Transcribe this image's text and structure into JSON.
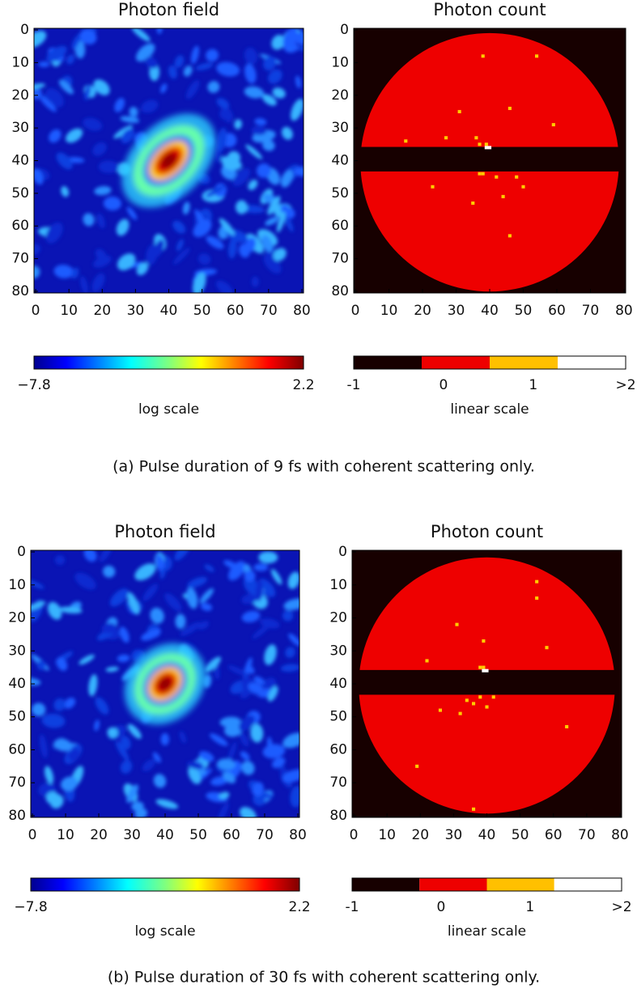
{
  "figures": [
    {
      "plots": [
        {
          "title": "Photon field",
          "xticks": [
            0,
            10,
            20,
            30,
            40,
            50,
            60,
            70,
            80
          ],
          "yticks": [
            0,
            10,
            20,
            30,
            40,
            50,
            60,
            70,
            80
          ]
        },
        {
          "title": "Photon count",
          "xticks": [
            0,
            10,
            20,
            30,
            40,
            50,
            60,
            70,
            80
          ],
          "yticks": [
            0,
            10,
            20,
            30,
            40,
            50,
            60,
            70,
            80
          ]
        }
      ],
      "colorbars": [
        {
          "ticks": [
            "−7.8",
            "2.2"
          ],
          "label": "log scale"
        },
        {
          "ticks": [
            "-1",
            "0",
            "1",
            ">2"
          ],
          "label": "linear scale"
        }
      ],
      "caption": "(a) Pulse duration of 9 fs with coherent scattering only."
    },
    {
      "plots": [
        {
          "title": "Photon field",
          "xticks": [
            0,
            10,
            20,
            30,
            40,
            50,
            60,
            70,
            80
          ],
          "yticks": [
            0,
            10,
            20,
            30,
            40,
            50,
            60,
            70,
            80
          ]
        },
        {
          "title": "Photon count",
          "xticks": [
            0,
            10,
            20,
            30,
            40,
            50,
            60,
            70,
            80
          ],
          "yticks": [
            0,
            10,
            20,
            30,
            40,
            50,
            60,
            70,
            80
          ]
        }
      ],
      "colorbars": [
        {
          "ticks": [
            "−7.8",
            "2.2"
          ],
          "label": "log scale"
        },
        {
          "ticks": [
            "-1",
            "0",
            "1",
            ">2"
          ],
          "label": "linear scale"
        }
      ],
      "caption": "(b) Pulse duration of 30 fs with coherent scattering only."
    }
  ]
}
